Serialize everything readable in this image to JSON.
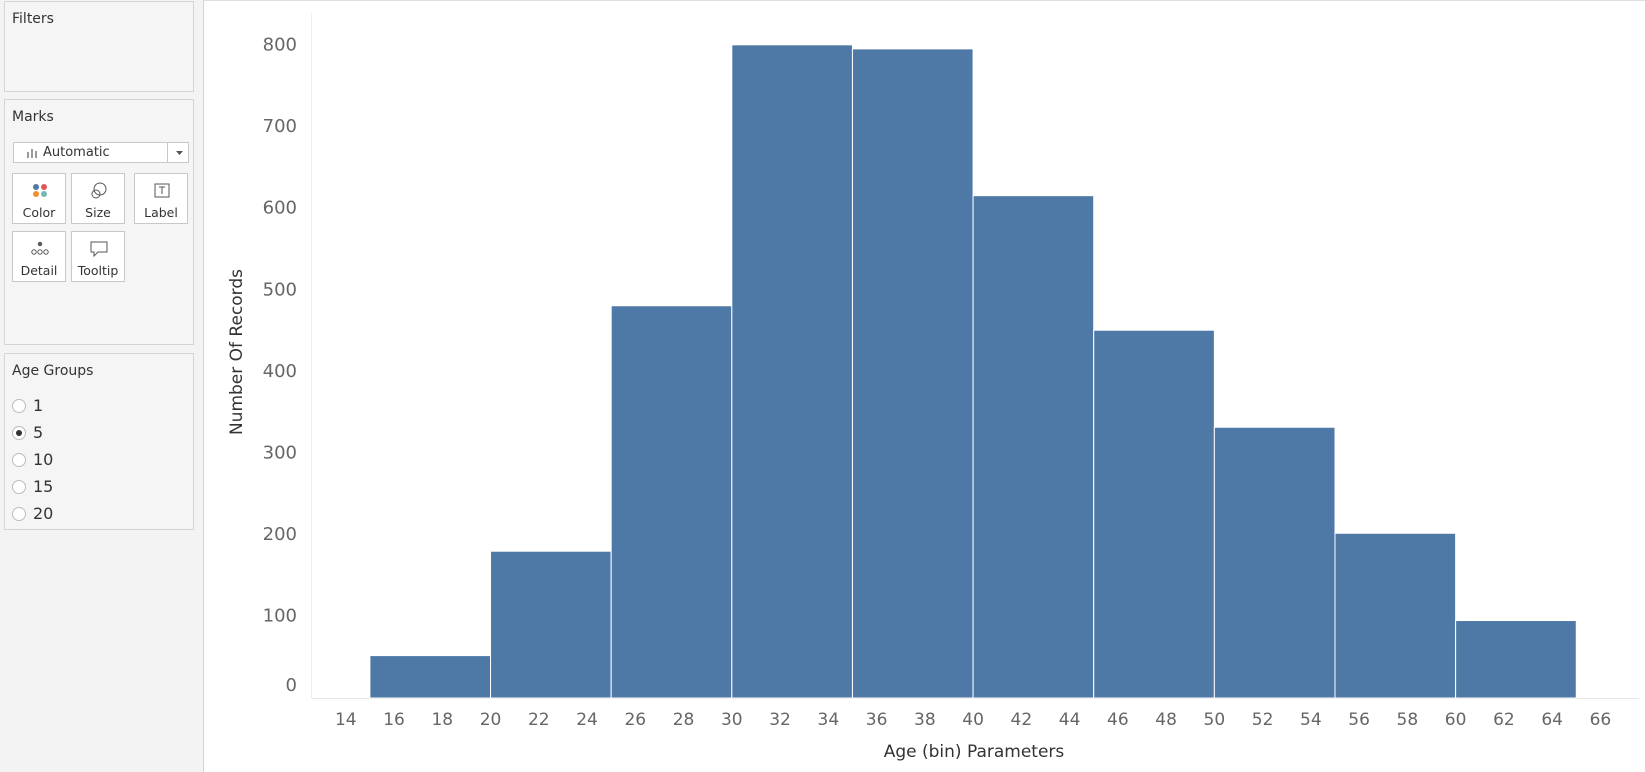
{
  "sidebar": {
    "filters": {
      "title": "Filters"
    },
    "marks": {
      "title": "Marks",
      "mark_type": "Automatic",
      "cards": [
        "Color",
        "Size",
        "Label",
        "Detail",
        "Tooltip"
      ]
    },
    "parameter": {
      "title": "Age Groups",
      "options": [
        "1",
        "5",
        "10",
        "15",
        "20"
      ],
      "selected": "5"
    }
  },
  "chart_data": {
    "type": "histogram",
    "x_label": "Age (bin) Parameters",
    "y_label": "Number Of Records",
    "bins": [
      15,
      20,
      25,
      30,
      35,
      40,
      45,
      50,
      55,
      60,
      65
    ],
    "values": [
      52,
      180,
      481,
      801,
      796,
      616,
      451,
      332,
      202,
      95
    ],
    "color": "#4e79a7",
    "xlim": [
      12.6,
      67.6
    ],
    "xticks": [
      14,
      16,
      18,
      20,
      22,
      24,
      26,
      28,
      30,
      32,
      34,
      36,
      38,
      40,
      42,
      44,
      46,
      48,
      50,
      52,
      54,
      56,
      58,
      60,
      62,
      64,
      66
    ],
    "ylim": [
      0,
      840
    ],
    "yticks": [
      0,
      100,
      200,
      300,
      400,
      500,
      600,
      700,
      800
    ],
    "grid": false
  }
}
